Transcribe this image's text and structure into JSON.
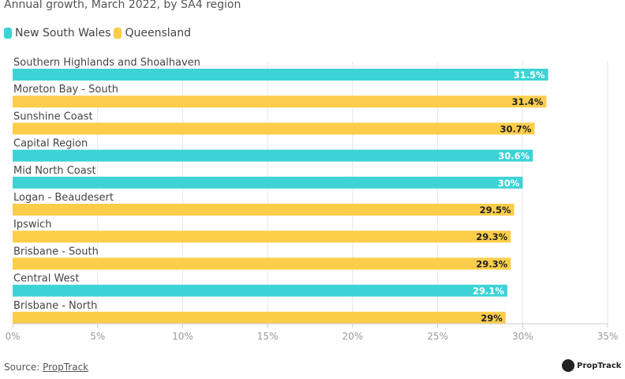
{
  "subtitle": "Annual growth, March 2022, by SA4 region",
  "legend": [
    {
      "name": "New South Wales",
      "color": "#3dd3d6"
    },
    {
      "name": "Queensland",
      "color": "#fbcd4a"
    }
  ],
  "source": {
    "prefix": "Source: ",
    "link": "PropTrack"
  },
  "logo": {
    "text": "PropTrack"
  },
  "chart_data": {
    "type": "bar",
    "orientation": "horizontal",
    "categories": [
      "Southern Highlands and Shoalhaven",
      "Moreton Bay - South",
      "Sunshine Coast",
      "Capital Region",
      "Mid North Coast",
      "Logan - Beaudesert",
      "Ipswich",
      "Brisbane - South",
      "Central West",
      "Brisbane - North"
    ],
    "values": [
      31.5,
      31.4,
      30.7,
      30.6,
      30.0,
      29.5,
      29.3,
      29.3,
      29.1,
      29.0
    ],
    "value_labels": [
      "31.5%",
      "31.4%",
      "30.7%",
      "30.6%",
      "30%",
      "29.5%",
      "29.3%",
      "29.3%",
      "29.1%",
      "29%"
    ],
    "series_by_bar": [
      "New South Wales",
      "Queensland",
      "Queensland",
      "New South Wales",
      "New South Wales",
      "Queensland",
      "Queensland",
      "Queensland",
      "New South Wales",
      "Queensland"
    ],
    "xlim": [
      0,
      35
    ],
    "xticks": [
      0,
      5,
      10,
      15,
      20,
      25,
      30,
      35
    ],
    "xtick_labels": [
      "0%",
      "5%",
      "10%",
      "15%",
      "20%",
      "25%",
      "30%",
      "35%"
    ],
    "grid": true,
    "legend_position": "top-left"
  }
}
